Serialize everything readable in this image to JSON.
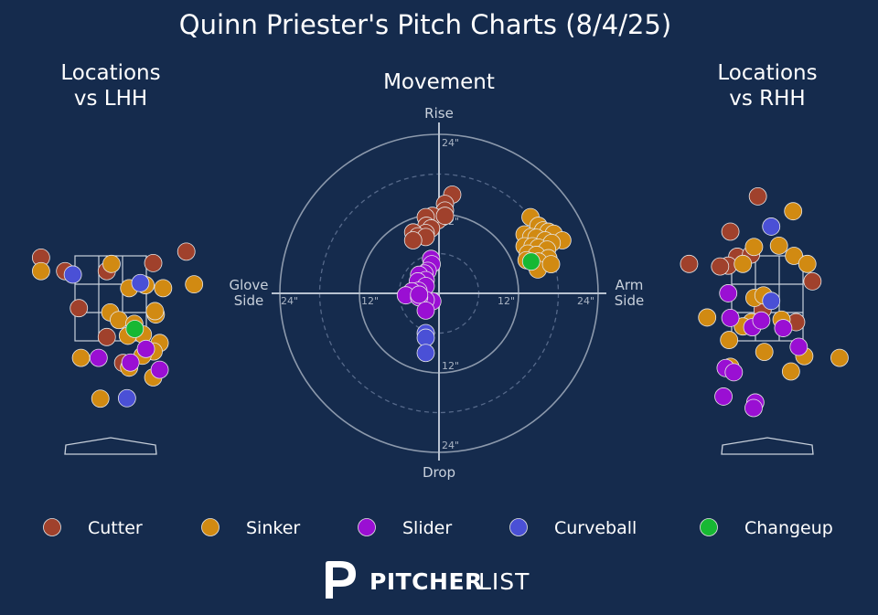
{
  "title": "Quinn Priester's Pitch Charts (8/4/25)",
  "colors": {
    "background": "#152b4d",
    "Cutter": "#a0412c",
    "Sinker": "#d18a12",
    "Slider": "#9a0fd3",
    "Curveball": "#4a50d6",
    "Changeup": "#17b833"
  },
  "legend": [
    {
      "name": "Cutter",
      "color": "#a0412c"
    },
    {
      "name": "Sinker",
      "color": "#d18a12"
    },
    {
      "name": "Slider",
      "color": "#9a0fd3"
    },
    {
      "name": "Curveball",
      "color": "#4a50d6"
    },
    {
      "name": "Changeup",
      "color": "#17b833"
    }
  ],
  "brand": {
    "bold": "PITCHER",
    "light": "LIST"
  },
  "chart_data": [
    {
      "type": "scatter",
      "title_line1": "Locations",
      "title_line2": "vs LHH",
      "xlim": [
        -2.0,
        2.0
      ],
      "ylim": [
        -0.5,
        5.0
      ],
      "strike_zone": {
        "x": [
          -0.83,
          0.83
        ],
        "y": [
          1.5,
          3.5
        ]
      },
      "points": [
        {
          "pitch": "Cutter",
          "x": -1.62,
          "y": 3.46
        },
        {
          "pitch": "Cutter",
          "x": -1.06,
          "y": 3.14
        },
        {
          "pitch": "Cutter",
          "x": -0.09,
          "y": 3.14
        },
        {
          "pitch": "Cutter",
          "x": 0.99,
          "y": 3.33
        },
        {
          "pitch": "Cutter",
          "x": 1.76,
          "y": 3.6
        },
        {
          "pitch": "Cutter",
          "x": -0.74,
          "y": 2.27
        },
        {
          "pitch": "Cutter",
          "x": -0.09,
          "y": 1.59
        },
        {
          "pitch": "Cutter",
          "x": 0.29,
          "y": 0.98
        },
        {
          "pitch": "Sinker",
          "x": -1.62,
          "y": 3.14
        },
        {
          "pitch": "Sinker",
          "x": 0.02,
          "y": 3.31
        },
        {
          "pitch": "Sinker",
          "x": 0.43,
          "y": 2.74
        },
        {
          "pitch": "Sinker",
          "x": 1.05,
          "y": 2.12
        },
        {
          "pitch": "Sinker",
          "x": 1.03,
          "y": 2.2
        },
        {
          "pitch": "Sinker",
          "x": 0.81,
          "y": 2.81
        },
        {
          "pitch": "Sinker",
          "x": 1.22,
          "y": 2.74
        },
        {
          "pitch": "Sinker",
          "x": 1.94,
          "y": 2.83
        },
        {
          "pitch": "Sinker",
          "x": -0.01,
          "y": 2.17
        },
        {
          "pitch": "Sinker",
          "x": 0.19,
          "y": 1.99
        },
        {
          "pitch": "Sinker",
          "x": 0.55,
          "y": 1.9
        },
        {
          "pitch": "Sinker",
          "x": 0.75,
          "y": 1.65
        },
        {
          "pitch": "Sinker",
          "x": 0.4,
          "y": 1.62
        },
        {
          "pitch": "Sinker",
          "x": 1.14,
          "y": 1.45
        },
        {
          "pitch": "Sinker",
          "x": 1.0,
          "y": 1.25
        },
        {
          "pitch": "Sinker",
          "x": 0.74,
          "y": 1.15
        },
        {
          "pitch": "Sinker",
          "x": -0.69,
          "y": 1.1
        },
        {
          "pitch": "Sinker",
          "x": 0.43,
          "y": 0.87
        },
        {
          "pitch": "Sinker",
          "x": 0.99,
          "y": 0.64
        },
        {
          "pitch": "Sinker",
          "x": -0.24,
          "y": 0.14
        },
        {
          "pitch": "Slider",
          "x": 0.82,
          "y": 1.31
        },
        {
          "pitch": "Slider",
          "x": -0.28,
          "y": 1.1
        },
        {
          "pitch": "Slider",
          "x": 0.46,
          "y": 0.99
        },
        {
          "pitch": "Slider",
          "x": 1.14,
          "y": 0.82
        },
        {
          "pitch": "Curveball",
          "x": -0.88,
          "y": 3.06
        },
        {
          "pitch": "Curveball",
          "x": 0.69,
          "y": 2.86
        },
        {
          "pitch": "Curveball",
          "x": 0.38,
          "y": 0.15
        },
        {
          "pitch": "Changeup",
          "x": 0.56,
          "y": 1.78
        }
      ]
    },
    {
      "type": "scatter",
      "title": "Movement",
      "polar": true,
      "rings": [
        6,
        12,
        18,
        24
      ],
      "ring_labels": [
        "12\"",
        "24\""
      ],
      "axis_labels": {
        "top": "Rise",
        "bottom": "Drop",
        "left_line1": "Glove",
        "left_line2": "Side",
        "right_line1": "Arm",
        "right_line2": "Side"
      },
      "xlim": [
        -24,
        24
      ],
      "ylim": [
        -24,
        24
      ],
      "points": [
        {
          "pitch": "Cutter",
          "x": 2.0,
          "y": 14.9
        },
        {
          "pitch": "Cutter",
          "x": 0.9,
          "y": 13.5
        },
        {
          "pitch": "Cutter",
          "x": 0.9,
          "y": 12.5
        },
        {
          "pitch": "Cutter",
          "x": 0.5,
          "y": 11.5
        },
        {
          "pitch": "Cutter",
          "x": -0.2,
          "y": 11.0
        },
        {
          "pitch": "Cutter",
          "x": -1.0,
          "y": 11.7
        },
        {
          "pitch": "Cutter",
          "x": -2.0,
          "y": 11.5
        },
        {
          "pitch": "Cutter",
          "x": -1.9,
          "y": 10.2
        },
        {
          "pitch": "Cutter",
          "x": -1.2,
          "y": 9.8
        },
        {
          "pitch": "Cutter",
          "x": -2.0,
          "y": 9.1
        },
        {
          "pitch": "Cutter",
          "x": -3.9,
          "y": 9.2
        },
        {
          "pitch": "Cutter",
          "x": -3.2,
          "y": 8.6
        },
        {
          "pitch": "Cutter",
          "x": -2.0,
          "y": 8.5
        },
        {
          "pitch": "Cutter",
          "x": -3.9,
          "y": 8.0
        },
        {
          "pitch": "Cutter",
          "x": 0.9,
          "y": 11.7
        },
        {
          "pitch": "Sinker",
          "x": 13.8,
          "y": 11.5
        },
        {
          "pitch": "Sinker",
          "x": 15.0,
          "y": 10.2
        },
        {
          "pitch": "Sinker",
          "x": 15.7,
          "y": 9.5
        },
        {
          "pitch": "Sinker",
          "x": 16.5,
          "y": 9.3
        },
        {
          "pitch": "Sinker",
          "x": 17.3,
          "y": 9.0
        },
        {
          "pitch": "Sinker",
          "x": 18.6,
          "y": 8.0
        },
        {
          "pitch": "Sinker",
          "x": 12.9,
          "y": 8.9
        },
        {
          "pitch": "Sinker",
          "x": 13.9,
          "y": 8.5
        },
        {
          "pitch": "Sinker",
          "x": 14.7,
          "y": 8.4
        },
        {
          "pitch": "Sinker",
          "x": 16.0,
          "y": 8.0
        },
        {
          "pitch": "Sinker",
          "x": 17.0,
          "y": 7.6
        },
        {
          "pitch": "Sinker",
          "x": 12.9,
          "y": 7.1
        },
        {
          "pitch": "Sinker",
          "x": 14.1,
          "y": 7.1
        },
        {
          "pitch": "Sinker",
          "x": 15.0,
          "y": 6.9
        },
        {
          "pitch": "Sinker",
          "x": 16.3,
          "y": 6.6
        },
        {
          "pitch": "Sinker",
          "x": 13.4,
          "y": 6.0
        },
        {
          "pitch": "Sinker",
          "x": 14.7,
          "y": 5.8
        },
        {
          "pitch": "Sinker",
          "x": 16.5,
          "y": 5.3
        },
        {
          "pitch": "Sinker",
          "x": 13.2,
          "y": 5.0
        },
        {
          "pitch": "Sinker",
          "x": 15.0,
          "y": 4.8
        },
        {
          "pitch": "Sinker",
          "x": 14.9,
          "y": 3.6
        },
        {
          "pitch": "Sinker",
          "x": 16.9,
          "y": 4.4
        },
        {
          "pitch": "Slider",
          "x": -1.2,
          "y": 5.2
        },
        {
          "pitch": "Slider",
          "x": -1.1,
          "y": 4.4
        },
        {
          "pitch": "Slider",
          "x": -1.7,
          "y": 3.4
        },
        {
          "pitch": "Slider",
          "x": -2.2,
          "y": 3.0
        },
        {
          "pitch": "Slider",
          "x": -3.0,
          "y": 2.8
        },
        {
          "pitch": "Slider",
          "x": -2.0,
          "y": 2.0
        },
        {
          "pitch": "Slider",
          "x": -3.2,
          "y": 1.8
        },
        {
          "pitch": "Slider",
          "x": -2.0,
          "y": 1.1
        },
        {
          "pitch": "Slider",
          "x": -3.1,
          "y": 0.4
        },
        {
          "pitch": "Slider",
          "x": -4.1,
          "y": 0.3
        },
        {
          "pitch": "Slider",
          "x": -5.0,
          "y": -0.3
        },
        {
          "pitch": "Slider",
          "x": -1.0,
          "y": -1.2
        },
        {
          "pitch": "Slider",
          "x": -2.0,
          "y": -1.0
        },
        {
          "pitch": "Slider",
          "x": -3.0,
          "y": -0.6
        },
        {
          "pitch": "Slider",
          "x": -3.0,
          "y": -0.2
        },
        {
          "pitch": "Slider",
          "x": -2.0,
          "y": -2.6
        },
        {
          "pitch": "Curveball",
          "x": -2.0,
          "y": -6.0
        },
        {
          "pitch": "Curveball",
          "x": -2.0,
          "y": -6.7
        },
        {
          "pitch": "Curveball",
          "x": -2.0,
          "y": -9.0
        },
        {
          "pitch": "Changeup",
          "x": 13.9,
          "y": 4.8
        }
      ]
    },
    {
      "type": "scatter",
      "title_line1": "Locations",
      "title_line2": "vs RHH",
      "xlim": [
        -2.0,
        2.0
      ],
      "ylim": [
        -0.5,
        5.0
      ],
      "strike_zone": {
        "x": [
          -0.83,
          0.83
        ],
        "y": [
          1.5,
          3.5
        ]
      },
      "points": [
        {
          "pitch": "Cutter",
          "x": -0.22,
          "y": 4.9
        },
        {
          "pitch": "Cutter",
          "x": -0.86,
          "y": 4.07
        },
        {
          "pitch": "Cutter",
          "x": -0.7,
          "y": 3.48
        },
        {
          "pitch": "Cutter",
          "x": -0.91,
          "y": 3.27
        },
        {
          "pitch": "Cutter",
          "x": -1.1,
          "y": 3.25
        },
        {
          "pitch": "Cutter",
          "x": -0.38,
          "y": 3.53
        },
        {
          "pitch": "Cutter",
          "x": -1.82,
          "y": 3.31
        },
        {
          "pitch": "Cutter",
          "x": 1.05,
          "y": 2.9
        },
        {
          "pitch": "Cutter",
          "x": -0.11,
          "y": 2.23
        },
        {
          "pitch": "Cutter",
          "x": 0.67,
          "y": 1.94
        },
        {
          "pitch": "Sinker",
          "x": 0.6,
          "y": 4.55
        },
        {
          "pitch": "Sinker",
          "x": -0.31,
          "y": 3.71
        },
        {
          "pitch": "Sinker",
          "x": 0.27,
          "y": 3.74
        },
        {
          "pitch": "Sinker",
          "x": 0.62,
          "y": 3.5
        },
        {
          "pitch": "Sinker",
          "x": 0.93,
          "y": 3.31
        },
        {
          "pitch": "Sinker",
          "x": -0.57,
          "y": 3.31
        },
        {
          "pitch": "Sinker",
          "x": -0.3,
          "y": 2.51
        },
        {
          "pitch": "Sinker",
          "x": -0.09,
          "y": 2.57
        },
        {
          "pitch": "Sinker",
          "x": -1.4,
          "y": 2.05
        },
        {
          "pitch": "Sinker",
          "x": -0.89,
          "y": 1.52
        },
        {
          "pitch": "Sinker",
          "x": -0.37,
          "y": 1.94
        },
        {
          "pitch": "Sinker",
          "x": -0.57,
          "y": 1.84
        },
        {
          "pitch": "Sinker",
          "x": 0.33,
          "y": 2.0
        },
        {
          "pitch": "Sinker",
          "x": -0.07,
          "y": 1.24
        },
        {
          "pitch": "Sinker",
          "x": 0.86,
          "y": 1.14
        },
        {
          "pitch": "Sinker",
          "x": 1.68,
          "y": 1.1
        },
        {
          "pitch": "Sinker",
          "x": 0.55,
          "y": 0.78
        },
        {
          "pitch": "Sinker",
          "x": -0.86,
          "y": 0.89
        },
        {
          "pitch": "Slider",
          "x": -0.91,
          "y": 2.62
        },
        {
          "pitch": "Slider",
          "x": -0.86,
          "y": 2.04
        },
        {
          "pitch": "Slider",
          "x": -0.35,
          "y": 1.82
        },
        {
          "pitch": "Slider",
          "x": 0.37,
          "y": 1.8
        },
        {
          "pitch": "Slider",
          "x": -0.14,
          "y": 1.98
        },
        {
          "pitch": "Slider",
          "x": 0.73,
          "y": 1.36
        },
        {
          "pitch": "Slider",
          "x": -0.97,
          "y": 0.86
        },
        {
          "pitch": "Slider",
          "x": -0.78,
          "y": 0.76
        },
        {
          "pitch": "Slider",
          "x": -1.02,
          "y": 0.19
        },
        {
          "pitch": "Slider",
          "x": -0.28,
          "y": 0.05
        },
        {
          "pitch": "Slider",
          "x": -0.32,
          "y": -0.08
        },
        {
          "pitch": "Curveball",
          "x": 0.09,
          "y": 4.19
        },
        {
          "pitch": "Curveball",
          "x": 0.09,
          "y": 2.44
        }
      ]
    }
  ]
}
